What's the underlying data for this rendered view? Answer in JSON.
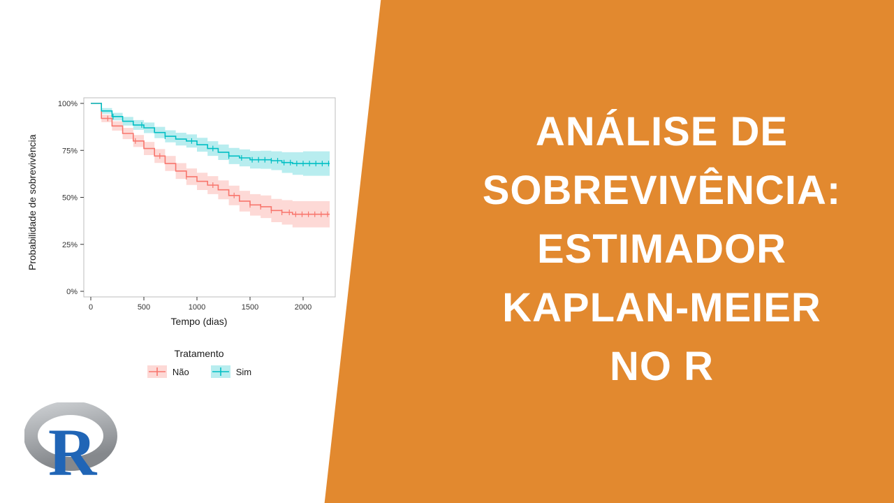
{
  "title_card": {
    "background_color": "#E2892F",
    "text_color": "#FFFFFF",
    "lines": [
      "ANÁLISE DE",
      "SOBREVIVÊNCIA:",
      "ESTIMADOR",
      "KAPLAN-MEIER",
      "NO R"
    ]
  },
  "logo": {
    "letter": "R",
    "ring_color_light": "#C9CCCF",
    "ring_color_dark": "#85888C",
    "letter_color": "#2065B6"
  },
  "chart_data": {
    "type": "line",
    "subtype": "kaplan-meier-step",
    "title": "",
    "xlabel": "Tempo (dias)",
    "ylabel": "Probabilidade de sobrevivência",
    "xlim": [
      0,
      2250
    ],
    "ylim": [
      0,
      100
    ],
    "xticks": [
      0,
      500,
      1000,
      1500,
      2000
    ],
    "yticks": [
      0,
      25,
      50,
      75,
      100
    ],
    "ytick_labels": [
      "0%",
      "25%",
      "50%",
      "75%",
      "100%"
    ],
    "grid": false,
    "panel_border_color": "#BDBDBD",
    "axis_text_color": "#333333",
    "legend": {
      "title": "Tratamento",
      "position": "bottom",
      "entries": [
        {
          "label": "Não",
          "color": "#F8766D"
        },
        {
          "label": "Sim",
          "color": "#00BFC4"
        }
      ]
    },
    "x": [
      0,
      100,
      200,
      300,
      400,
      500,
      600,
      700,
      800,
      900,
      1000,
      1100,
      1200,
      1300,
      1400,
      1500,
      1600,
      1700,
      1800,
      1900,
      2000,
      2250
    ],
    "series": [
      {
        "name": "Não",
        "color": "#F8766D",
        "values": [
          100,
          92,
          88,
          84,
          80,
          76,
          72,
          68,
          64,
          61,
          58.5,
          56.5,
          54,
          51,
          48,
          46,
          45,
          43,
          42,
          41,
          41,
          41
        ],
        "ci_lower": [
          100,
          90,
          85.5,
          81,
          76.8,
          72.5,
          68.3,
          64,
          59.8,
          56.6,
          53.9,
          51.7,
          49,
          45.8,
          42.5,
          40.3,
          39,
          36.8,
          35.5,
          34,
          34,
          34
        ],
        "ci_upper": [
          100,
          94,
          90.5,
          87,
          83.2,
          79.5,
          75.7,
          72,
          68.2,
          65.4,
          63.1,
          61.3,
          59,
          56.2,
          53.5,
          51.7,
          51,
          49.2,
          48.5,
          48,
          48,
          48
        ],
        "censor_x": [
          160,
          420,
          650,
          900,
          1150,
          1350,
          1500,
          1600,
          1700,
          1800,
          1870,
          1930,
          1990,
          2050,
          2110,
          2170,
          2230
        ]
      },
      {
        "name": "Sim",
        "color": "#00BFC4",
        "values": [
          100,
          96,
          93,
          90.5,
          88.5,
          87,
          84.5,
          82.5,
          81,
          80,
          78,
          76,
          74,
          72,
          71,
          70,
          70,
          69.5,
          68.5,
          68,
          68,
          68
        ],
        "ci_lower": [
          100,
          94.5,
          91,
          88.2,
          85.9,
          84.2,
          81.5,
          79.3,
          77.6,
          76.5,
          74.3,
          72.1,
          69.9,
          67.7,
          66.5,
          65.3,
          65.2,
          64.5,
          63,
          62,
          61.5,
          61.5
        ],
        "ci_upper": [
          100,
          97.5,
          95,
          92.8,
          91.1,
          89.8,
          87.5,
          85.7,
          84.4,
          83.5,
          81.7,
          79.9,
          78.1,
          76.3,
          75.5,
          74.7,
          74.8,
          74.5,
          74,
          74,
          74.5,
          74.5
        ],
        "censor_x": [
          210,
          480,
          700,
          950,
          1150,
          1300,
          1420,
          1520,
          1580,
          1640,
          1700,
          1760,
          1820,
          1880,
          1940,
          2000,
          2060,
          2120,
          2180,
          2240
        ]
      }
    ]
  }
}
